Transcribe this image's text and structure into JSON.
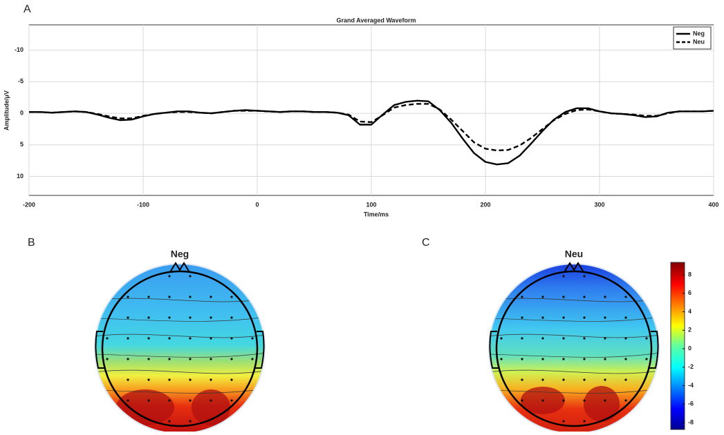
{
  "chart_data": [
    {
      "type": "line",
      "label": "A",
      "title": "Grand Averaged Waveform",
      "xlabel": "Time/ms",
      "ylabel": "Amplitude/μV",
      "x": [
        -200,
        -190,
        -180,
        -170,
        -160,
        -150,
        -140,
        -130,
        -120,
        -110,
        -100,
        -90,
        -80,
        -70,
        -60,
        -50,
        -40,
        -30,
        -20,
        -10,
        0,
        10,
        20,
        30,
        40,
        50,
        60,
        70,
        80,
        90,
        100,
        110,
        120,
        130,
        140,
        150,
        160,
        170,
        180,
        190,
        200,
        210,
        220,
        230,
        240,
        250,
        260,
        270,
        280,
        290,
        300,
        310,
        320,
        330,
        340,
        350,
        360,
        370,
        380,
        390,
        400
      ],
      "series": [
        {
          "name": "Neg",
          "color": "#000000",
          "dash": false,
          "values": [
            -0.2,
            -0.2,
            -0.1,
            -0.2,
            -0.3,
            -0.2,
            0.2,
            0.7,
            1.1,
            1.0,
            0.5,
            0.1,
            -0.1,
            -0.3,
            -0.3,
            -0.1,
            0,
            -0.2,
            -0.4,
            -0.5,
            -0.4,
            -0.3,
            -0.2,
            -0.3,
            -0.3,
            -0.2,
            -0.2,
            -0.1,
            0.3,
            1.8,
            1.8,
            0.2,
            -1.3,
            -1.8,
            -2.0,
            -1.9,
            -0.5,
            1.5,
            4.0,
            6.3,
            7.7,
            8.1,
            7.9,
            6.7,
            4.8,
            2.8,
            1.0,
            -0.2,
            -0.8,
            -0.8,
            -0.3,
            0,
            0.1,
            0.3,
            0.6,
            0.5,
            -0.1,
            -0.3,
            -0.3,
            -0.3,
            -0.4
          ]
        },
        {
          "name": "Neu",
          "color": "#000000",
          "dash": true,
          "values": [
            -0.2,
            -0.2,
            -0.1,
            -0.2,
            -0.3,
            -0.2,
            0.1,
            0.5,
            0.8,
            0.8,
            0.4,
            0.1,
            -0.1,
            -0.2,
            -0.2,
            -0.1,
            0,
            -0.2,
            -0.4,
            -0.4,
            -0.4,
            -0.3,
            -0.2,
            -0.3,
            -0.3,
            -0.2,
            -0.2,
            -0.1,
            0.2,
            1.3,
            1.4,
            0.3,
            -0.9,
            -1.3,
            -1.5,
            -1.5,
            -0.6,
            1.0,
            2.8,
            4.6,
            5.6,
            5.9,
            5.8,
            5.1,
            3.9,
            2.5,
            1.1,
            0.1,
            -0.5,
            -0.6,
            -0.3,
            0,
            0.1,
            0.2,
            0.4,
            0.4,
            0,
            -0.3,
            -0.3,
            -0.3,
            -0.4
          ]
        }
      ],
      "xlim": [
        -200,
        400
      ],
      "xticks": [
        -200,
        -100,
        0,
        100,
        200,
        300,
        400
      ],
      "ylim": [
        -14,
        13
      ],
      "yticks": [
        -10,
        -5,
        0,
        5,
        10
      ],
      "y_inverted": true,
      "grid": true,
      "legend": "upper right"
    },
    {
      "type": "topomap",
      "panels": [
        {
          "label": "B",
          "title": "Neg"
        },
        {
          "label": "C",
          "title": "Neu"
        }
      ],
      "colorbar": {
        "lim": [
          -8.75,
          9.35
        ],
        "ticks": [
          -8,
          -6,
          -4,
          -2,
          0,
          2,
          4,
          6,
          8
        ]
      }
    }
  ]
}
